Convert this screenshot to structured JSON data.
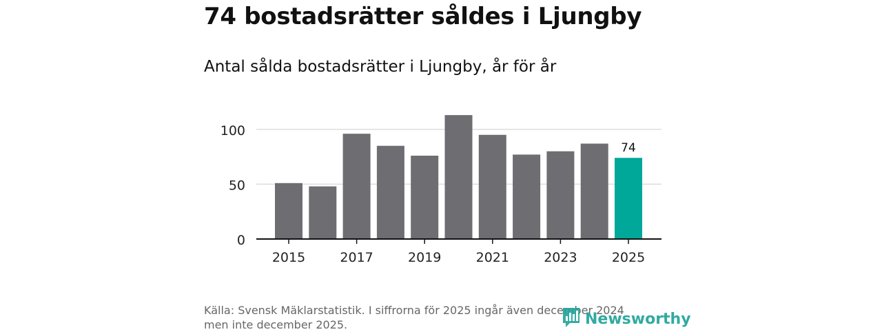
{
  "header": {
    "title": "74 bostadsrätter såldes i Ljungby",
    "subtitle": "Antal sålda bostadsrätter i Ljungby, år för år"
  },
  "footer": {
    "source": "Källa: Svensk Mäklarstatistik. I siffrorna för 2025 ingår även december 2024 men inte december 2025."
  },
  "brand": {
    "name": "Newsworthy",
    "icon": "newsworthy-chart-bubble-icon"
  },
  "colors": {
    "bar": "#6e6d72",
    "highlight": "#00a89a",
    "grid": "#dddddd",
    "axis": "#111111",
    "brand": "#20a39a"
  },
  "chart_data": {
    "type": "bar",
    "title": "Antal sålda bostadsrätter i Ljungby, år för år",
    "xlabel": "",
    "ylabel": "",
    "categories": [
      2015,
      2016,
      2017,
      2018,
      2019,
      2020,
      2021,
      2022,
      2023,
      2024,
      2025
    ],
    "values": [
      51,
      48,
      96,
      85,
      76,
      113,
      95,
      77,
      80,
      87,
      74
    ],
    "highlight": 2025,
    "highlight_label": "74",
    "ylim": [
      0,
      120
    ],
    "yticks": [
      0,
      50,
      100
    ],
    "xticks": [
      2015,
      2017,
      2019,
      2021,
      2023,
      2025
    ],
    "grid": true
  }
}
